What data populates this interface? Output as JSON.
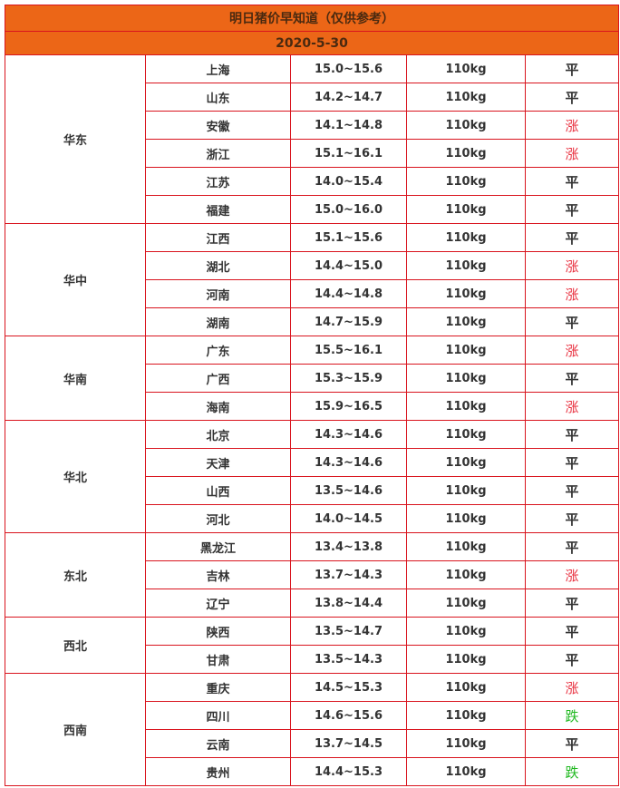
{
  "title": "明日猪价早知道（仅供参考）",
  "date": "2020-5-30",
  "colors": {
    "header_bg": "#ec6617",
    "border": "#d9141e",
    "up": "#e8303f",
    "down": "#1fb81f",
    "text": "#333333"
  },
  "trend_classes": {
    "涨": "up",
    "跌": "down",
    "平": "flat"
  },
  "regions": [
    {
      "name": "华东",
      "rows": [
        {
          "province": "上海",
          "price": "15.0~15.6",
          "weight": "110kg",
          "trend": "平"
        },
        {
          "province": "山东",
          "price": "14.2~14.7",
          "weight": "110kg",
          "trend": "平"
        },
        {
          "province": "安徽",
          "price": "14.1~14.8",
          "weight": "110kg",
          "trend": "涨"
        },
        {
          "province": "浙江",
          "price": "15.1~16.1",
          "weight": "110kg",
          "trend": "涨"
        },
        {
          "province": "江苏",
          "price": "14.0~15.4",
          "weight": "110kg",
          "trend": "平"
        },
        {
          "province": "福建",
          "price": "15.0~16.0",
          "weight": "110kg",
          "trend": "平"
        }
      ]
    },
    {
      "name": "华中",
      "rows": [
        {
          "province": "江西",
          "price": "15.1~15.6",
          "weight": "110kg",
          "trend": "平"
        },
        {
          "province": "湖北",
          "price": "14.4~15.0",
          "weight": "110kg",
          "trend": "涨"
        },
        {
          "province": "河南",
          "price": "14.4~14.8",
          "weight": "110kg",
          "trend": "涨"
        },
        {
          "province": "湖南",
          "price": "14.7~15.9",
          "weight": "110kg",
          "trend": "平"
        }
      ]
    },
    {
      "name": "华南",
      "rows": [
        {
          "province": "广东",
          "price": "15.5~16.1",
          "weight": "110kg",
          "trend": "涨"
        },
        {
          "province": "广西",
          "price": "15.3~15.9",
          "weight": "110kg",
          "trend": "平"
        },
        {
          "province": "海南",
          "price": "15.9~16.5",
          "weight": "110kg",
          "trend": "涨"
        }
      ]
    },
    {
      "name": "华北",
      "rows": [
        {
          "province": "北京",
          "price": "14.3~14.6",
          "weight": "110kg",
          "trend": "平"
        },
        {
          "province": "天津",
          "price": "14.3~14.6",
          "weight": "110kg",
          "trend": "平"
        },
        {
          "province": "山西",
          "price": "13.5~14.6",
          "weight": "110kg",
          "trend": "平"
        },
        {
          "province": "河北",
          "price": "14.0~14.5",
          "weight": "110kg",
          "trend": "平"
        }
      ]
    },
    {
      "name": "东北",
      "rows": [
        {
          "province": "黑龙江",
          "price": "13.4~13.8",
          "weight": "110kg",
          "trend": "平"
        },
        {
          "province": "吉林",
          "price": "13.7~14.3",
          "weight": "110kg",
          "trend": "涨"
        },
        {
          "province": "辽宁",
          "price": "13.8~14.4",
          "weight": "110kg",
          "trend": "平"
        }
      ]
    },
    {
      "name": "西北",
      "rows": [
        {
          "province": "陕西",
          "price": "13.5~14.7",
          "weight": "110kg",
          "trend": "平"
        },
        {
          "province": "甘肃",
          "price": "13.5~14.3",
          "weight": "110kg",
          "trend": "平"
        }
      ]
    },
    {
      "name": "西南",
      "rows": [
        {
          "province": "重庆",
          "price": "14.5~15.3",
          "weight": "110kg",
          "trend": "涨"
        },
        {
          "province": "四川",
          "price": "14.6~15.6",
          "weight": "110kg",
          "trend": "跌"
        },
        {
          "province": "云南",
          "price": "13.7~14.5",
          "weight": "110kg",
          "trend": "平"
        },
        {
          "province": "贵州",
          "price": "14.4~15.3",
          "weight": "110kg",
          "trend": "跌"
        }
      ]
    }
  ]
}
